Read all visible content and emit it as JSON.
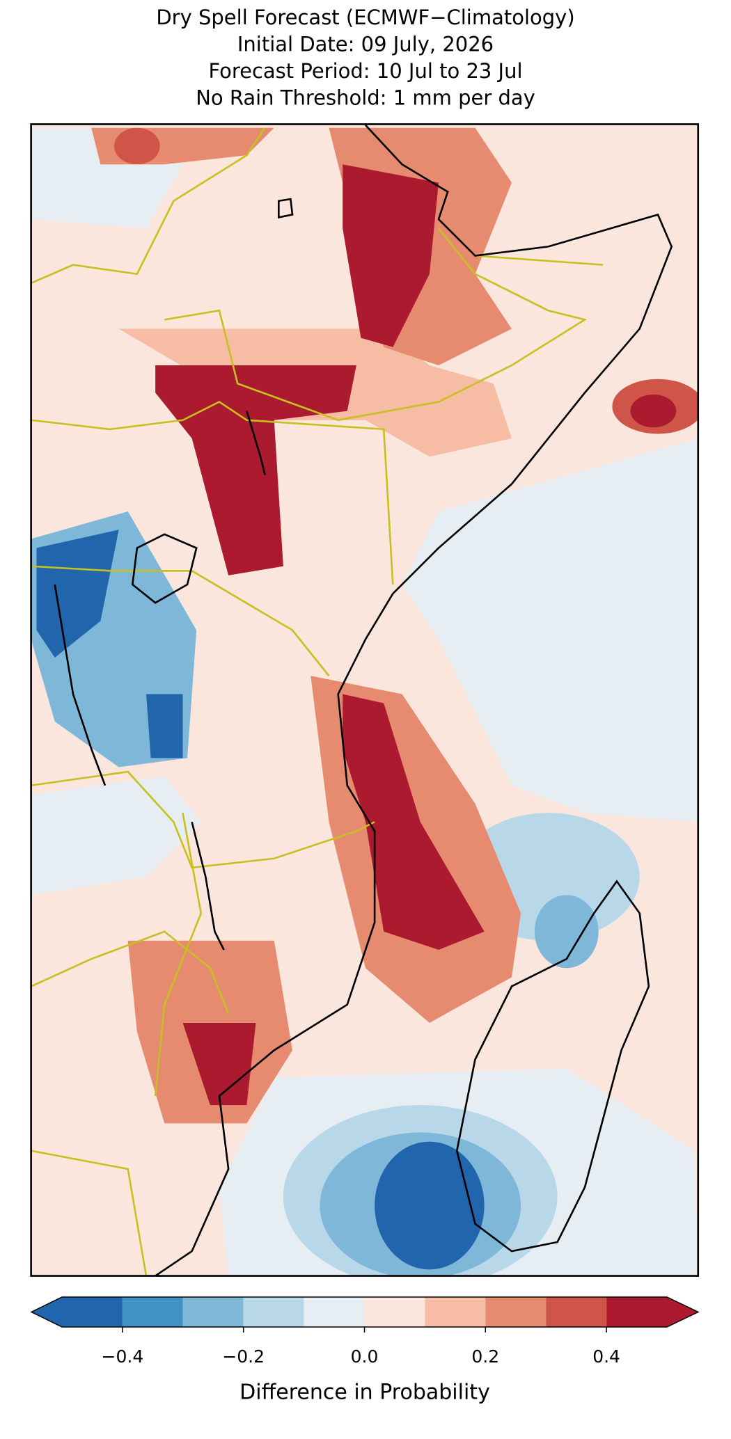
{
  "chart_data": {
    "type": "map",
    "title": [
      "Dry Spell Forecast (ECMWF−Climatology)",
      "Initial Date: 09 July, 2026",
      "Forecast Period: 10 Jul to 23 Jul",
      "No Rain Threshold: 1 mm per day"
    ],
    "colorbar": {
      "label": "Difference in Probability",
      "bounds": [
        -0.5,
        -0.4,
        -0.3,
        -0.2,
        -0.1,
        0,
        0.1,
        0.2,
        0.3,
        0.4,
        0.5
      ],
      "colors": [
        "#2166ac",
        "#4191c4",
        "#7fb7d9",
        "#b8d8e9",
        "#e7eef3",
        "#fae6dd",
        "#f6bca4",
        "#e68b70",
        "#cf5549",
        "#ac1a2f"
      ],
      "extend": "both",
      "ticks": [
        {
          "value": -0.4,
          "label": "−0.4"
        },
        {
          "value": -0.2,
          "label": "−0.2"
        },
        {
          "value": 0,
          "label": "0.0"
        },
        0.2,
        0.4
      ]
    }
  }
}
